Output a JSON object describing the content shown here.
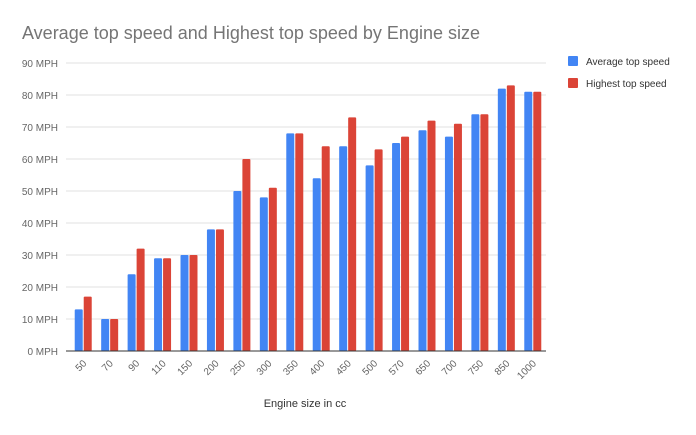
{
  "chart_data": {
    "type": "bar",
    "title": "Average top speed and Highest top speed by Engine size",
    "xlabel": "Engine size in cc",
    "ylabel": "",
    "ylim": [
      0,
      90
    ],
    "yticks": [
      "0 MPH",
      "10 MPH",
      "20 MPH",
      "30 MPH",
      "40 MPH",
      "50 MPH",
      "60 MPH",
      "70 MPH",
      "80 MPH",
      "90 MPH"
    ],
    "grid": true,
    "legend_position": "right",
    "categories": [
      "50",
      "70",
      "90",
      "110",
      "150",
      "200",
      "250",
      "300",
      "350",
      "400",
      "450",
      "500",
      "570",
      "650",
      "700",
      "750",
      "850",
      "1000"
    ],
    "series": [
      {
        "name": "Average top speed",
        "color": "#4285f4",
        "values": [
          13,
          10,
          24,
          29,
          30,
          38,
          50,
          48,
          68,
          54,
          64,
          58,
          65,
          69,
          67,
          74,
          82,
          81
        ]
      },
      {
        "name": "Highest top speed",
        "color": "#db4437",
        "values": [
          17,
          10,
          32,
          29,
          30,
          38,
          60,
          51,
          68,
          64,
          73,
          63,
          67,
          72,
          71,
          74,
          83,
          81
        ]
      }
    ]
  }
}
